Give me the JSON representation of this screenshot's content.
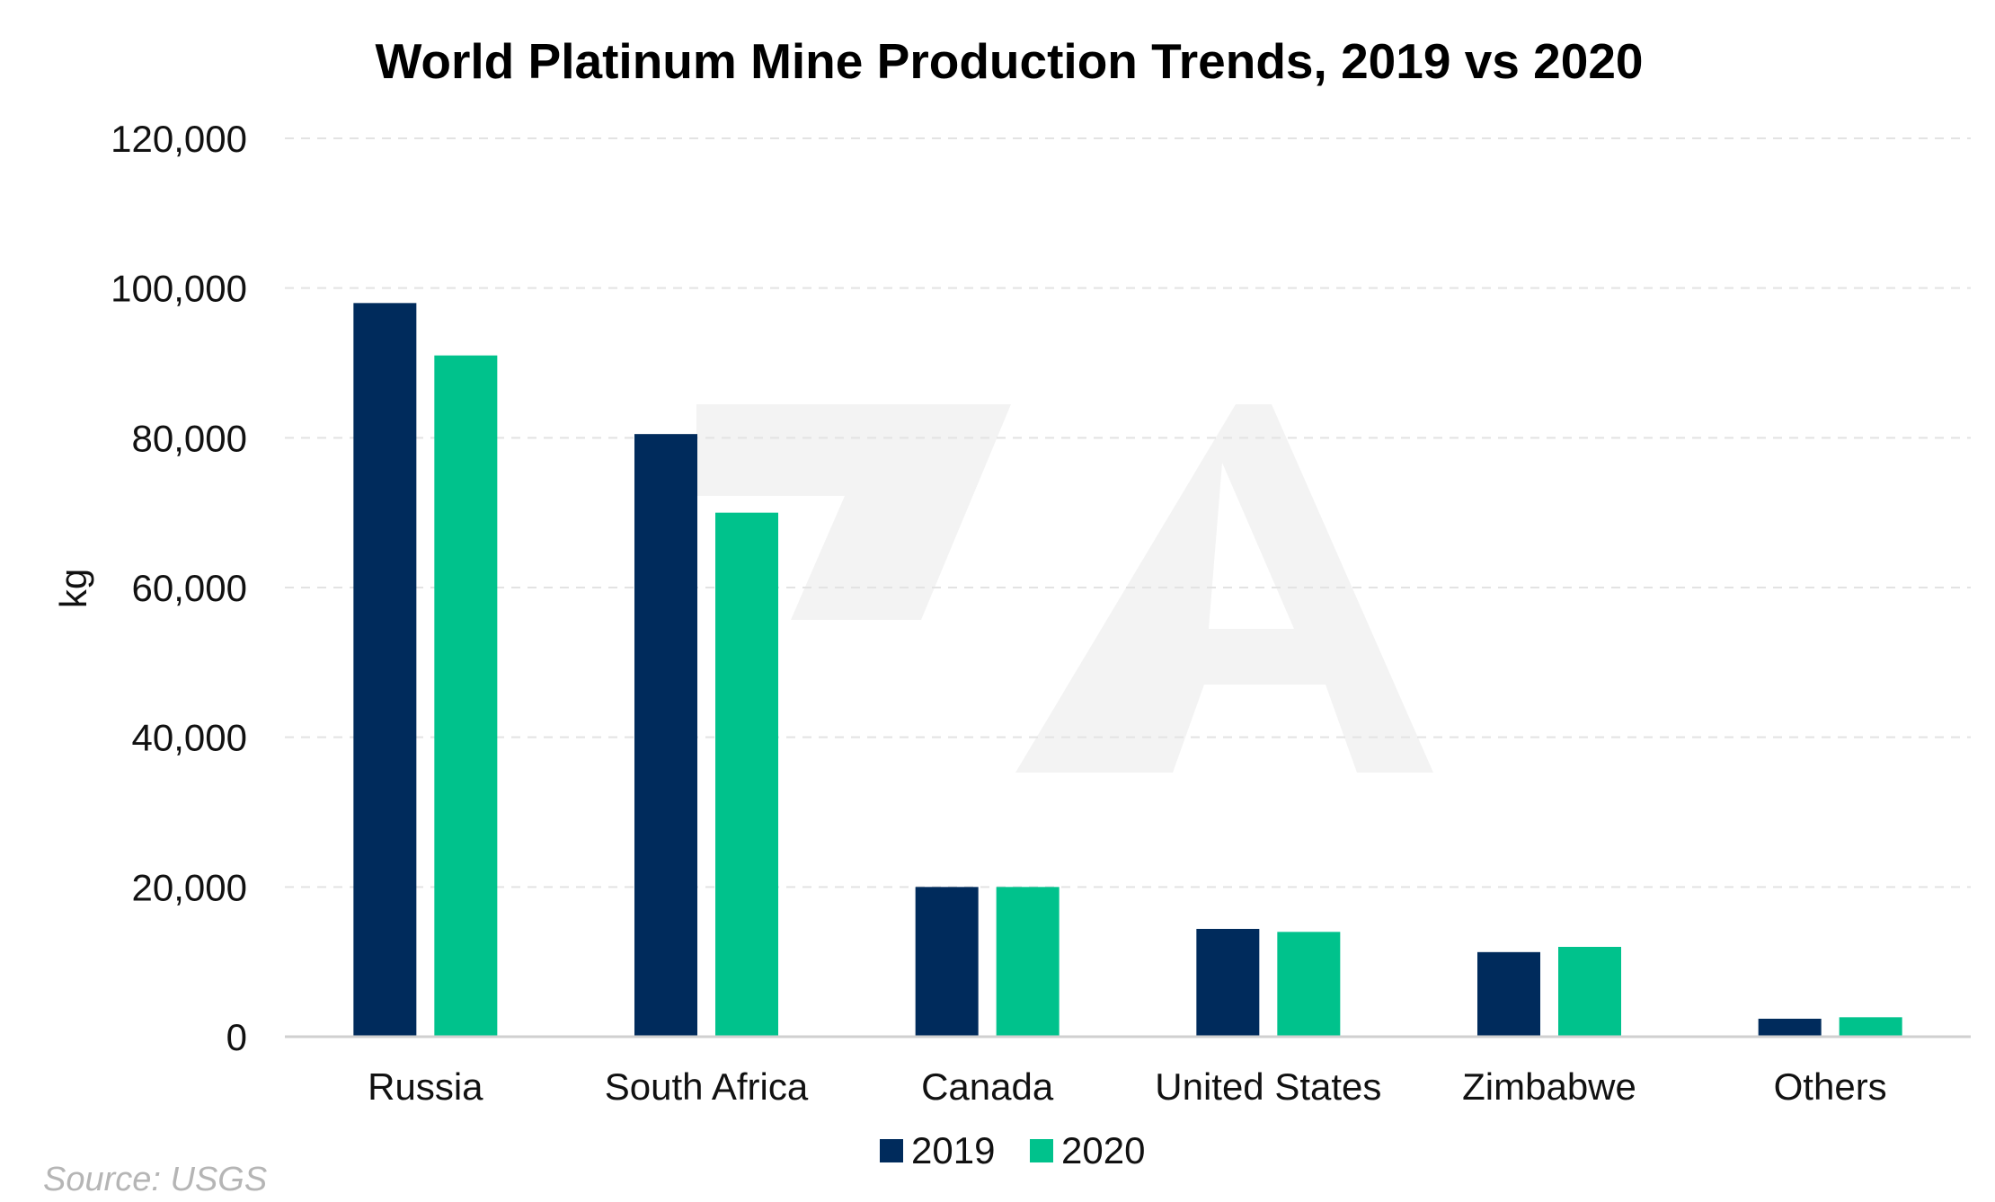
{
  "chart_data": {
    "type": "bar",
    "title": "World Platinum Mine Production Trends, 2019 vs 2020",
    "ylabel": "kg",
    "xlabel": "",
    "categories": [
      "Russia",
      "South Africa",
      "Canada",
      "United States",
      "Zimbabwe",
      "Others"
    ],
    "series": [
      {
        "name": "2019",
        "color": "#002b5c",
        "values": [
          98000,
          80500,
          20000,
          14400,
          11300,
          2400
        ]
      },
      {
        "name": "2020",
        "color": "#00c28c",
        "values": [
          91000,
          70000,
          20000,
          14000,
          12000,
          2600
        ]
      }
    ],
    "ylim": [
      0,
      120000
    ],
    "yticks": [
      0,
      20000,
      40000,
      60000,
      80000,
      100000,
      120000
    ],
    "ytick_labels": [
      "0",
      "20,000",
      "40,000",
      "60,000",
      "80,000",
      "100,000",
      "120,000"
    ],
    "grid": true,
    "legend_position": "bottom-center"
  },
  "source": "Source: USGS"
}
